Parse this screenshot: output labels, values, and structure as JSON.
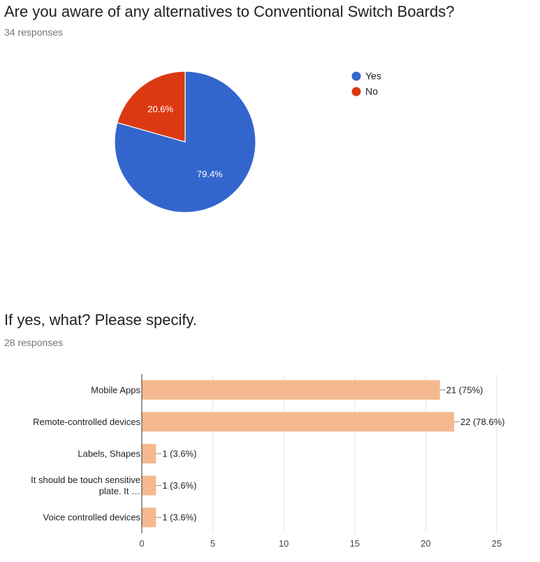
{
  "questions": [
    {
      "title": "Are you aware of any alternatives to Conventional Switch Boards?",
      "responses": "34 responses"
    },
    {
      "title": "If yes, what? Please specify.",
      "responses": "28 responses"
    }
  ],
  "chart_data": [
    {
      "type": "pie",
      "categories": [
        "Yes",
        "No"
      ],
      "values": [
        79.4,
        20.6
      ],
      "labels": [
        "79.4%",
        "20.6%"
      ],
      "colors": [
        "#3366cc",
        "#dc3912"
      ],
      "legend": "right",
      "title": ""
    },
    {
      "type": "bar",
      "orientation": "horizontal",
      "categories": [
        "Mobile Apps",
        "Remote-controlled devices",
        "Labels, Shapes",
        "It should be touch sensitive plate. It …",
        "Voice controlled devices"
      ],
      "values": [
        21,
        22,
        1,
        1,
        1
      ],
      "labels": [
        "21 (75%)",
        "22 (78.6%)",
        "1 (3.6%)",
        "1 (3.6%)",
        "1 (3.6%)"
      ],
      "color": "#f6b98f",
      "xlim": [
        0,
        25
      ],
      "xticks": [
        0,
        5,
        10,
        15,
        20,
        25
      ],
      "grid": true,
      "title": ""
    }
  ]
}
